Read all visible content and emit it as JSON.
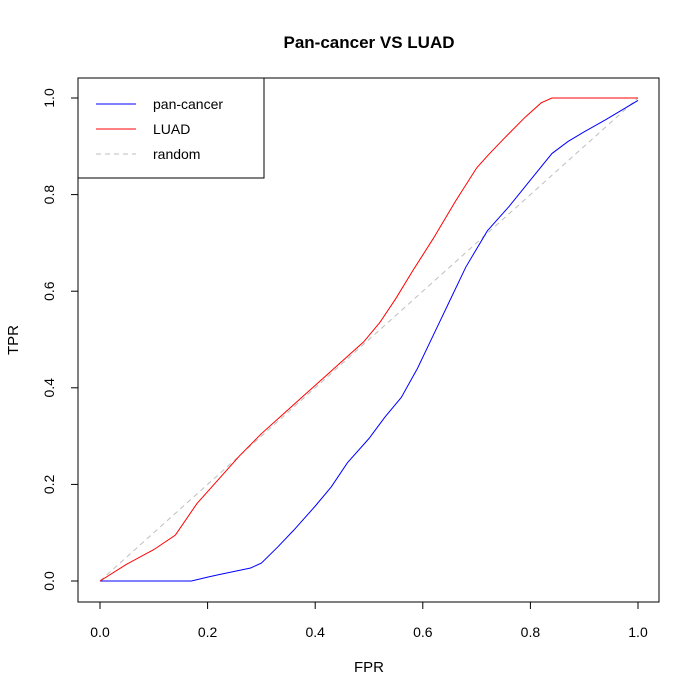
{
  "chart_data": {
    "type": "line",
    "title": "Pan-cancer VS LUAD",
    "xlabel": "FPR",
    "ylabel": "TPR",
    "xlim": [
      0,
      1
    ],
    "ylim": [
      0,
      1
    ],
    "x_ticks": [
      "0.0",
      "0.2",
      "0.4",
      "0.6",
      "0.8",
      "1.0"
    ],
    "y_ticks": [
      "0.0",
      "0.2",
      "0.4",
      "0.6",
      "0.8",
      "1.0"
    ],
    "grid": false,
    "legend_position": "top-left",
    "series": [
      {
        "name": "pan-cancer",
        "color": "#0000ff",
        "style": "solid",
        "x": [
          0,
          0.17,
          0.2,
          0.22,
          0.25,
          0.28,
          0.3,
          0.33,
          0.36,
          0.4,
          0.43,
          0.46,
          0.5,
          0.53,
          0.56,
          0.59,
          0.62,
          0.65,
          0.68,
          0.72,
          0.76,
          0.8,
          0.84,
          0.87,
          0.9,
          0.94,
          0.97,
          1.0
        ],
        "y": [
          0,
          0,
          0.008,
          0.013,
          0.02,
          0.027,
          0.037,
          0.07,
          0.105,
          0.155,
          0.195,
          0.245,
          0.295,
          0.34,
          0.38,
          0.44,
          0.51,
          0.58,
          0.65,
          0.725,
          0.775,
          0.83,
          0.885,
          0.91,
          0.93,
          0.955,
          0.975,
          0.995
        ]
      },
      {
        "name": "LUAD",
        "color": "#ff0000",
        "style": "solid",
        "x": [
          0,
          0.05,
          0.1,
          0.14,
          0.18,
          0.22,
          0.26,
          0.3,
          0.34,
          0.38,
          0.42,
          0.46,
          0.49,
          0.52,
          0.55,
          0.58,
          0.62,
          0.66,
          0.7,
          0.72,
          0.75,
          0.79,
          0.82,
          0.84,
          0.88,
          0.92,
          0.96,
          1.0
        ],
        "y": [
          0,
          0.035,
          0.065,
          0.095,
          0.16,
          0.21,
          0.26,
          0.305,
          0.345,
          0.385,
          0.425,
          0.465,
          0.495,
          0.535,
          0.585,
          0.64,
          0.71,
          0.785,
          0.855,
          0.88,
          0.915,
          0.96,
          0.99,
          1.0,
          1.0,
          1.0,
          1.0,
          1.0
        ]
      },
      {
        "name": "random",
        "color": "#bebebe",
        "style": "dashed",
        "x": [
          0,
          1
        ],
        "y": [
          0,
          1
        ]
      }
    ]
  }
}
